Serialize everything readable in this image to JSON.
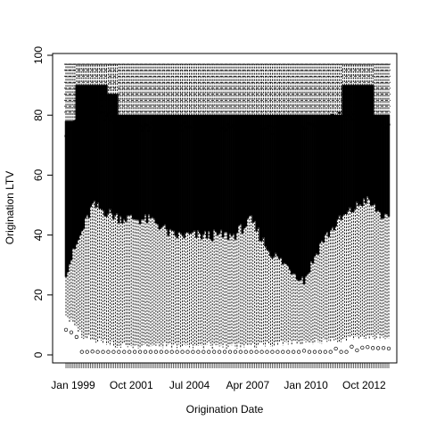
{
  "chart_data": {
    "type": "boxplot",
    "title": "",
    "xlabel": "Origination Date",
    "ylabel": "Origination LTV",
    "ylim": [
      0,
      100
    ],
    "yticks": [
      0,
      20,
      40,
      60,
      80,
      100
    ],
    "x_tick_labels": [
      "Jan 1999",
      "Oct 2001",
      "Jul 2004",
      "Apr 2007",
      "Jan 2010",
      "Oct 2012"
    ],
    "x_tick_label_months": [
      0,
      33,
      66,
      99,
      132,
      165
    ],
    "n_boxes": 184,
    "whisker_high": 97,
    "box_series": {
      "description": "Monthly boxplots, values estimated from visual",
      "upper_quartile_segments": [
        {
          "from": 0,
          "to": 6,
          "q3": 78
        },
        {
          "from": 6,
          "to": 24,
          "q3": 90
        },
        {
          "from": 24,
          "to": 30,
          "q3": 87
        },
        {
          "from": 30,
          "to": 157,
          "q3": 80
        },
        {
          "from": 157,
          "to": 175,
          "q3": 90
        },
        {
          "from": 175,
          "to": 184,
          "q3": 80
        }
      ],
      "median_keypoints": [
        [
          0,
          74
        ],
        [
          10,
          80
        ],
        [
          20,
          80
        ],
        [
          40,
          76
        ],
        [
          80,
          76
        ],
        [
          120,
          75
        ],
        [
          160,
          80
        ],
        [
          184,
          76
        ]
      ],
      "upper_fence_keypoints": [
        [
          0,
          55
        ],
        [
          15,
          73
        ],
        [
          30,
          70
        ],
        [
          45,
          63
        ],
        [
          55,
          55
        ],
        [
          60,
          48
        ],
        [
          70,
          65
        ],
        [
          80,
          63
        ],
        [
          95,
          60
        ],
        [
          105,
          67
        ],
        [
          115,
          55
        ],
        [
          125,
          58
        ],
        [
          135,
          40
        ],
        [
          145,
          67
        ],
        [
          155,
          60
        ],
        [
          170,
          73
        ],
        [
          184,
          62
        ]
      ],
      "q1_keypoints": [
        [
          0,
          28
        ],
        [
          15,
          50
        ],
        [
          30,
          46
        ],
        [
          50,
          45
        ],
        [
          60,
          40
        ],
        [
          80,
          40
        ],
        [
          95,
          40
        ],
        [
          105,
          45
        ],
        [
          115,
          35
        ],
        [
          125,
          30
        ],
        [
          135,
          25
        ],
        [
          145,
          38
        ],
        [
          155,
          45
        ],
        [
          170,
          52
        ],
        [
          184,
          44
        ]
      ],
      "lower_whisker_keypoints": [
        [
          0,
          12
        ],
        [
          10,
          5
        ],
        [
          30,
          2
        ],
        [
          60,
          2
        ],
        [
          100,
          2
        ],
        [
          130,
          3
        ],
        [
          150,
          4
        ],
        [
          184,
          5
        ]
      ]
    }
  }
}
